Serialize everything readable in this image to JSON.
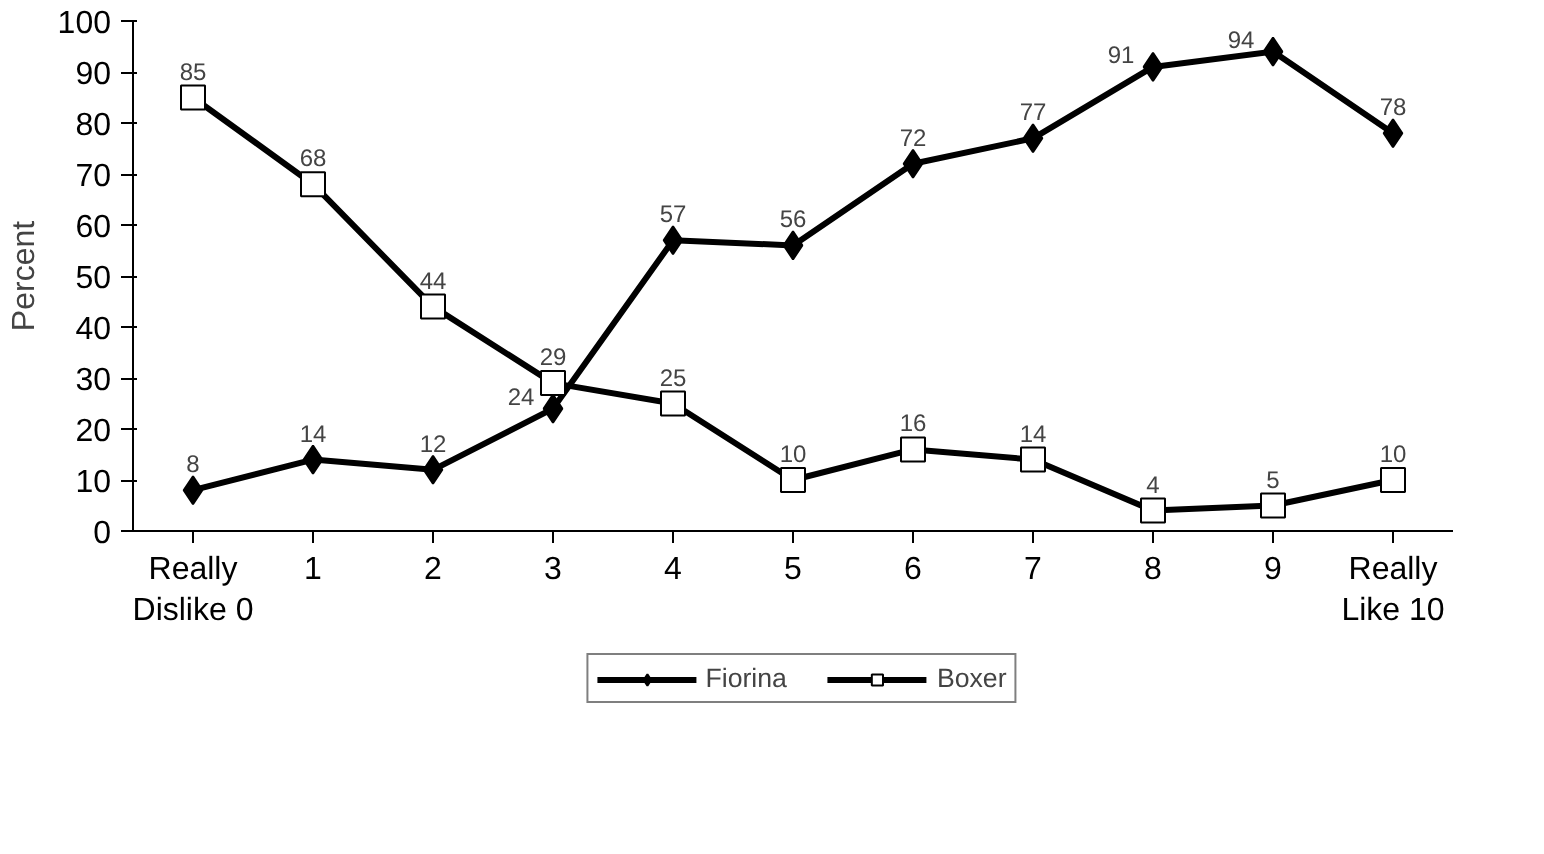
{
  "chart_data": {
    "type": "line",
    "ylabel": "Percent",
    "categories": [
      "Really\nDislike 0",
      "1",
      "2",
      "3",
      "4",
      "5",
      "6",
      "7",
      "8",
      "9",
      "Really\nLike 10"
    ],
    "series": [
      {
        "name": "Fiorina",
        "color": "#000000",
        "marker": "diamond",
        "values": [
          8,
          14,
          12,
          24,
          57,
          56,
          72,
          77,
          91,
          94,
          78
        ]
      },
      {
        "name": "Boxer",
        "color": "#000000",
        "marker": "square",
        "values": [
          85,
          68,
          44,
          29,
          25,
          10,
          16,
          14,
          4,
          5,
          10
        ]
      }
    ],
    "ylim": [
      0,
      100
    ],
    "yticks": [
      0,
      10,
      20,
      30,
      40,
      50,
      60,
      70,
      80,
      90,
      100
    ],
    "grid": false,
    "legend": "bottom",
    "data_labels": true,
    "line_style": "solid"
  }
}
